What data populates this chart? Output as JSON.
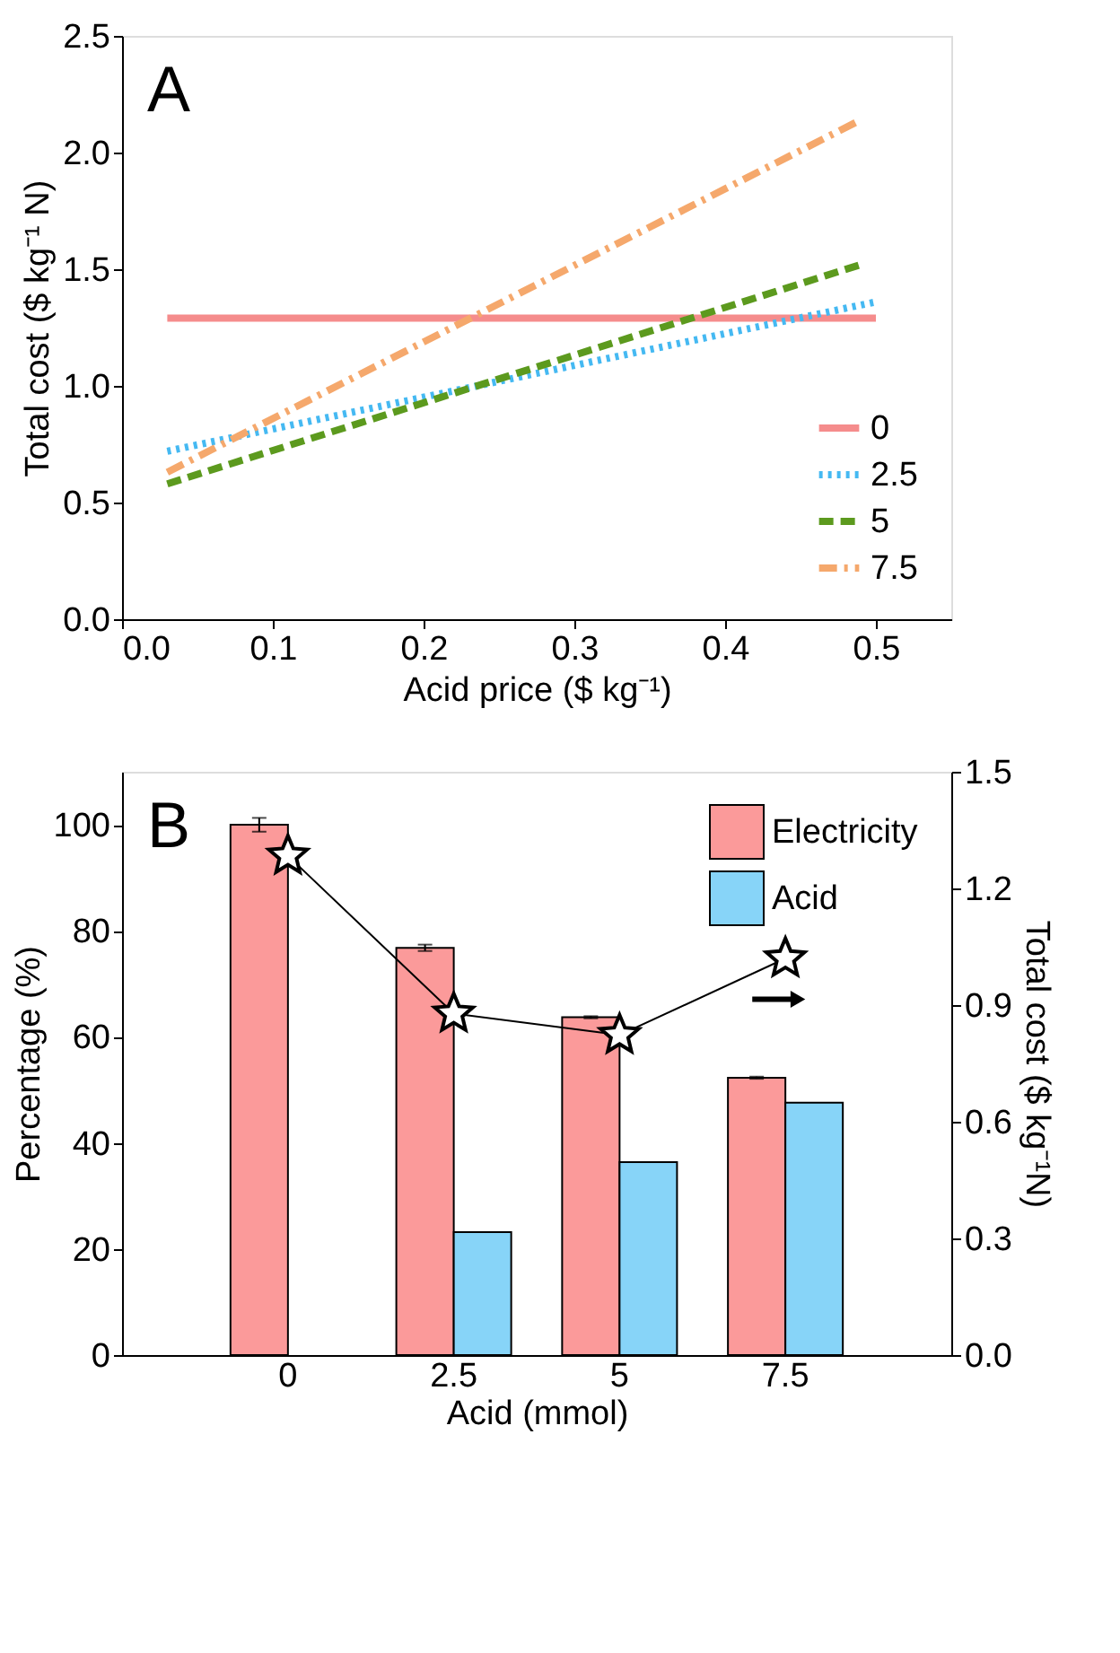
{
  "chart_data": [
    {
      "type": "line",
      "annotations": [
        "A"
      ],
      "xlabel": "Acid price ($ kg⁻¹)",
      "ylabel": "Total cost ($ kg⁻¹ N)",
      "xlim": [
        0,
        0.55
      ],
      "xticks": [
        {
          "value": 0,
          "label": "0.0"
        },
        0.1,
        0.2,
        0.3,
        0.4,
        0.5
      ],
      "ylim": [
        0,
        2.5
      ],
      "yticks": [
        {
          "value": 0,
          "label": "0.0"
        },
        0.5,
        {
          "value": 1,
          "label": "1.0"
        },
        1.5,
        {
          "value": 2,
          "label": "2.0"
        },
        2.5
      ],
      "grid": false,
      "legend": "bottom right",
      "series": [
        {
          "name": "0",
          "color": "#f58c8c",
          "line_style": "solid",
          "x": [
            0.03,
            0.5
          ],
          "values": [
            1.29,
            1.29
          ]
        },
        {
          "name": "2.5",
          "color": "#45b9f2",
          "line_style": "dotted",
          "x": [
            0.03,
            0.5
          ],
          "values": [
            0.72,
            1.36
          ]
        },
        {
          "name": "5",
          "color": "#5c9a1e",
          "line_style": "dashed",
          "x": [
            0.03,
            0.49
          ],
          "values": [
            0.58,
            1.52
          ]
        },
        {
          "name": "7.5",
          "color": "#f5a86c",
          "line_style": "dashdot",
          "x": [
            0.03,
            0.49
          ],
          "values": [
            0.63,
            2.14
          ]
        }
      ]
    },
    {
      "type": "bar",
      "annotations": [
        "B"
      ],
      "xlabel": "Acid  (mmol)",
      "ylabel": "Percentage (%)",
      "y2label": "Total cost ($ kg⁻¹N)",
      "categories": [
        "0",
        "2.5",
        "5",
        "7.5"
      ],
      "ylim": [
        0,
        110
      ],
      "yticks": [
        0,
        20,
        40,
        60,
        80,
        100
      ],
      "y2lim": [
        0,
        1.5
      ],
      "y2ticks": [
        {
          "value": 0,
          "label": "0.0"
        },
        0.3,
        0.6,
        0.9,
        1.2,
        1.5
      ],
      "grid": false,
      "legend": "top right",
      "series": [
        {
          "name": "Electricity",
          "color": "#fb9a9a",
          "values": [
            100,
            76.8,
            63.7,
            52.3
          ],
          "errors": [
            1.3,
            0.6,
            0.2,
            0.2
          ]
        },
        {
          "name": "Acid",
          "color": "#87d4f8",
          "values": [
            null,
            23.2,
            36.4,
            47.6
          ]
        },
        {
          "type": "line",
          "axis": "y2",
          "marker": "star",
          "color": "#000000",
          "values": [
            1.284,
            0.878,
            0.823,
            1.02
          ]
        }
      ]
    }
  ]
}
